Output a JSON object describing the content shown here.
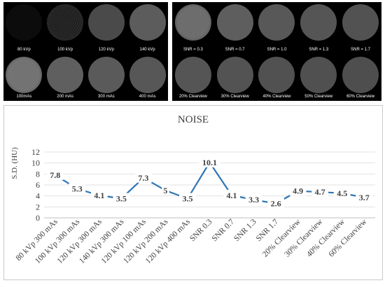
{
  "panels": [
    {
      "name": "kvp-panel",
      "images": [
        {
          "label": "80 kVp",
          "tone": "#0c0c0c",
          "grain": false
        },
        {
          "label": "100 kVp",
          "tone": "#1f1f1f",
          "grain": true
        },
        {
          "label": "120 kVp",
          "tone": "#4a4a4a",
          "grain": false
        },
        {
          "label": "140 kVp",
          "tone": "#5c5c5c",
          "grain": false
        }
      ]
    },
    {
      "name": "snr-panel",
      "images": [
        {
          "label": "SNR = 0.3",
          "tone": "#6a6a6a",
          "grain": true
        },
        {
          "label": "SNR = 0.7",
          "tone": "#5e5e5e",
          "grain": false
        },
        {
          "label": "SNR = 1.0",
          "tone": "#585858",
          "grain": false
        },
        {
          "label": "SNR = 1.3",
          "tone": "#555555",
          "grain": false
        },
        {
          "label": "SNR = 1.7",
          "tone": "#525252",
          "grain": false
        }
      ]
    },
    {
      "name": "mas-panel",
      "images": [
        {
          "label": "100mAs",
          "tone": "#707070",
          "grain": true
        },
        {
          "label": "200 mAs",
          "tone": "#5f5f5f",
          "grain": false
        },
        {
          "label": "300 mAs",
          "tone": "#5a5a5a",
          "grain": false
        },
        {
          "label": "400 mAs",
          "tone": "#575757",
          "grain": false
        }
      ]
    },
    {
      "name": "clearview-panel",
      "images": [
        {
          "label": "20% Clearview",
          "tone": "#555555",
          "grain": false
        },
        {
          "label": "30% Clearview",
          "tone": "#535353",
          "grain": false
        },
        {
          "label": "40% Clearview",
          "tone": "#515151",
          "grain": false
        },
        {
          "label": "50% Clearview",
          "tone": "#505050",
          "grain": false
        },
        {
          "label": "60% Clearview",
          "tone": "#4e4e4e",
          "grain": false
        }
      ]
    }
  ],
  "chart_data": {
    "type": "line",
    "title": "NOISE",
    "ylabel": "S.D. (HU)",
    "xlabel": "",
    "ylim": [
      0,
      12
    ],
    "yticks": [
      0,
      2,
      4,
      6,
      8,
      10,
      12
    ],
    "grid": true,
    "line_color": "#2e75b6",
    "categories": [
      "80 kVp 300 mAs",
      "100 kVp 300 mAs",
      "120 kVp 300 mAs",
      "140 kVp 300 mAs",
      "120 kVp 100 mAs",
      "120 kVp 200 mAs",
      "120 kVp 400 mAs",
      "SNR 0.3",
      "SNR 0.7",
      "SNR 1.3",
      "SNR 1.7",
      "20% Clearview",
      "30% Clearview",
      "40% Clearview",
      "60% Clearview"
    ],
    "series": [
      {
        "values": [
          7.8,
          5.3,
          4.1,
          3.5,
          7.3,
          5,
          3.5,
          10.1,
          4.1,
          3.3,
          2.6,
          4.9,
          4.7,
          4.5,
          3.7
        ],
        "labels": [
          "7.8",
          "5.3",
          "4.1",
          "3.5",
          "7.3",
          "5",
          "3.5",
          "10.1",
          "4.1",
          "3.3",
          "2.6",
          "4.9",
          "4.7",
          "4.5",
          "3.7"
        ]
      }
    ]
  }
}
